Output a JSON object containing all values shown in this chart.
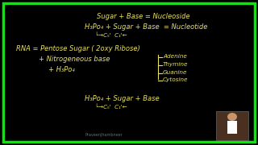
{
  "bg_color": "#000000",
  "border_color": "#00ee00",
  "text_color": "#e8e060",
  "line1": "Sugar + Base = Nucleoside",
  "line2": "H₃Po₄ + Sugar + Base  = Nucleotide",
  "line2_arrow": "└→C₅'  C₁'←",
  "line3": "RNA = Pentose Sugar ( 2oxy Ribose)",
  "line4": "+ Nitrogeneous base",
  "line5": "+ H₃Po₄",
  "branches": [
    "Adenine",
    "Thymine",
    "Guanine",
    "Cytosine"
  ],
  "line6": "H₃Po₄ + Sugar + Base",
  "line6_arrow": "└→C₅'  C₁'←",
  "watermark": "PraveenJhambneer"
}
